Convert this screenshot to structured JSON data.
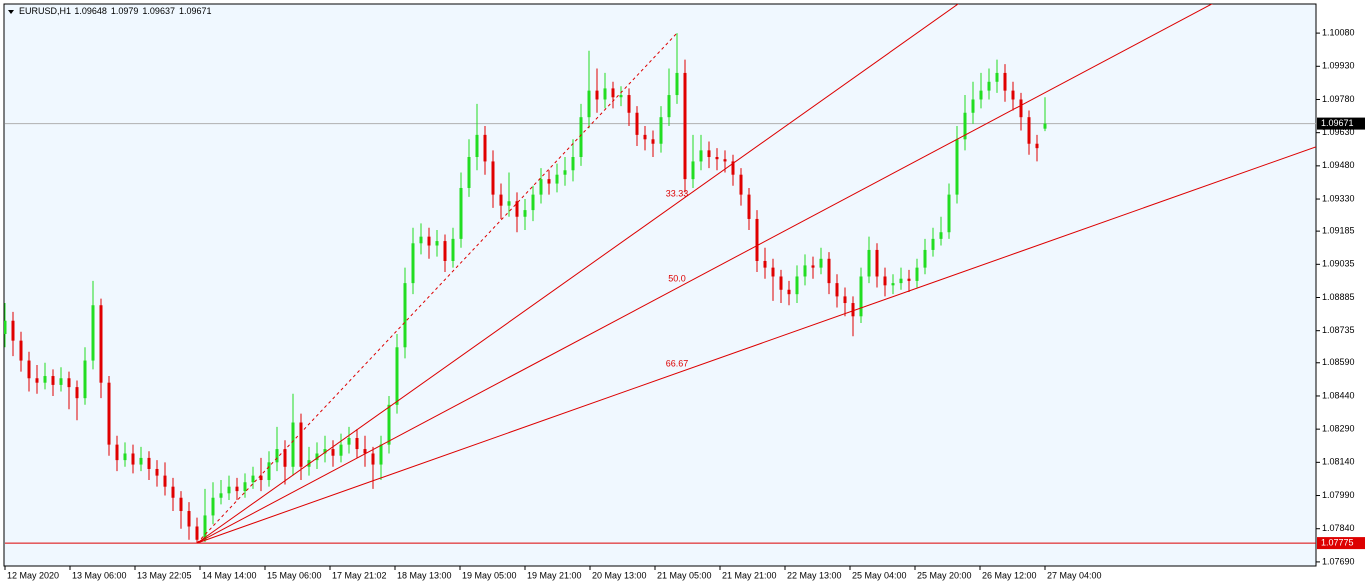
{
  "chart_data": {
    "type": "candlestick",
    "symbol": "EURUSD,H1",
    "bull_color": "#22dd22",
    "bear_color": "#e00000",
    "background": "#f0f8ff",
    "fan_color": "#dd0000",
    "ylim": [
      1.07676,
      1.10207
    ],
    "yticks": [
      {
        "value": 1.1008,
        "label": "1.10080"
      },
      {
        "value": 1.0993,
        "label": "1.09930"
      },
      {
        "value": 1.0978,
        "label": "1.09780"
      },
      {
        "value": 1.0963,
        "label": "1.09630"
      },
      {
        "value": 1.0948,
        "label": "1.09480"
      },
      {
        "value": 1.0933,
        "label": "1.09330"
      },
      1.09185,
      1.09035,
      1.08885,
      1.08735,
      {
        "value": 1.0859,
        "label": "1.08590"
      },
      {
        "value": 1.0844,
        "label": "1.08440"
      },
      {
        "value": 1.0829,
        "label": "1.08290"
      },
      {
        "value": 1.0814,
        "label": "1.08140"
      },
      {
        "value": 1.0799,
        "label": "1.07990"
      },
      {
        "value": 1.0784,
        "label": "1.07840"
      },
      {
        "value": 1.0769,
        "label": "1.07690"
      }
    ],
    "xtick_labels": [
      "12 May 2020",
      "13 May 06:00",
      "13 May 22:05",
      "14 May 14:00",
      "15 May 06:00",
      "17 May 21:02",
      "18 May 13:00",
      "19 May 05:00",
      "19 May 21:00",
      "20 May 13:00",
      "21 May 05:00",
      "21 May 21:00",
      "22 May 13:00",
      "25 May 04:00",
      "25 May 20:00",
      "26 May 12:00",
      "27 May 04:00"
    ],
    "hlines": [
      {
        "value": 1.07775,
        "color": "#dd0000"
      }
    ],
    "fan": {
      "start": 24,
      "end": 84,
      "levels": [
        33.33,
        {
          "value": 50,
          "label": "50.0"
        },
        66.67
      ]
    },
    "candles": [
      [
        1.0872,
        1.0886,
        1.0866,
        1.0878
      ],
      [
        1.0878,
        1.0882,
        1.0862,
        1.0869
      ],
      [
        1.0869,
        1.0873,
        1.0855,
        1.086
      ],
      [
        1.086,
        1.0864,
        1.0846,
        1.0852
      ],
      [
        1.0852,
        1.0858,
        1.0845,
        1.085
      ],
      [
        1.085,
        1.0859,
        1.0847,
        1.0853
      ],
      [
        1.0853,
        1.0856,
        1.0844,
        1.0849
      ],
      [
        1.0849,
        1.0857,
        1.0846,
        1.0852
      ],
      [
        1.0852,
        1.0855,
        1.0838,
        1.0848
      ],
      [
        1.0848,
        1.0851,
        1.0833,
        1.0843
      ],
      [
        1.0843,
        1.0866,
        1.084,
        1.086
      ],
      [
        1.086,
        1.0896,
        1.0856,
        1.0885
      ],
      [
        1.0885,
        1.0888,
        1.0843,
        1.085
      ],
      [
        1.085,
        1.0853,
        1.0817,
        1.0822
      ],
      [
        1.0822,
        1.0826,
        1.081,
        1.0815
      ],
      [
        1.0815,
        1.0823,
        1.0812,
        1.0818
      ],
      [
        1.0818,
        1.0822,
        1.0809,
        1.0813
      ],
      [
        1.0813,
        1.0821,
        1.081,
        1.0816
      ],
      [
        1.0816,
        1.0819,
        1.0806,
        1.0811
      ],
      [
        1.0811,
        1.0815,
        1.0803,
        1.0808
      ],
      [
        1.0808,
        1.0814,
        1.0799,
        1.0803
      ],
      [
        1.0803,
        1.0807,
        1.0792,
        1.0798
      ],
      [
        1.0798,
        1.0801,
        1.0784,
        1.0792
      ],
      [
        1.0792,
        1.0796,
        1.0779,
        1.0785
      ],
      [
        1.0785,
        1.0789,
        1.07775,
        1.0779
      ],
      [
        1.0779,
        1.0802,
        1.0778,
        1.079
      ],
      [
        1.079,
        1.0805,
        1.0786,
        1.0798
      ],
      [
        1.0798,
        1.0806,
        1.0795,
        1.08
      ],
      [
        1.08,
        1.0808,
        1.0797,
        1.0803
      ],
      [
        1.0803,
        1.0807,
        1.0797,
        1.0801
      ],
      [
        1.0801,
        1.0809,
        1.0798,
        1.0805
      ],
      [
        1.0805,
        1.0812,
        1.0802,
        1.0808
      ],
      [
        1.0808,
        1.0816,
        1.0801,
        1.0806
      ],
      [
        1.0806,
        1.0819,
        1.0803,
        1.0814
      ],
      [
        1.0814,
        1.083,
        1.081,
        1.082
      ],
      [
        1.082,
        1.0824,
        1.0804,
        1.0812
      ],
      [
        1.0812,
        1.0845,
        1.0808,
        1.0832
      ],
      [
        1.0832,
        1.0836,
        1.0806,
        1.0812
      ],
      [
        1.0812,
        1.0821,
        1.0808,
        1.0815
      ],
      [
        1.0815,
        1.0823,
        1.0811,
        1.0818
      ],
      [
        1.0818,
        1.0826,
        1.0814,
        1.082
      ],
      [
        1.082,
        1.0824,
        1.0812,
        1.0817
      ],
      [
        1.0817,
        1.0827,
        1.0814,
        1.0822
      ],
      [
        1.0822,
        1.083,
        1.0818,
        1.0825
      ],
      [
        1.0825,
        1.0829,
        1.0816,
        1.082
      ],
      [
        1.082,
        1.0826,
        1.0812,
        1.0818
      ],
      [
        1.0818,
        1.0821,
        1.0802,
        1.0813
      ],
      [
        1.0813,
        1.0826,
        1.0806,
        1.0822
      ],
      [
        1.0822,
        1.0844,
        1.0818,
        1.084
      ],
      [
        1.084,
        1.0872,
        1.0836,
        1.0866
      ],
      [
        1.0866,
        1.0902,
        1.0861,
        1.0895
      ],
      [
        1.0895,
        1.092,
        1.089,
        1.0913
      ],
      [
        1.0913,
        1.0922,
        1.0908,
        1.0916
      ],
      [
        1.0916,
        1.092,
        1.0906,
        1.0912
      ],
      [
        1.0912,
        1.0919,
        1.0907,
        1.0914
      ],
      [
        1.0914,
        1.0917,
        1.09,
        1.0905
      ],
      [
        1.0905,
        1.092,
        1.0902,
        1.0915
      ],
      [
        1.0915,
        1.0945,
        1.0911,
        1.0938
      ],
      [
        1.0938,
        1.096,
        1.0934,
        1.0952
      ],
      [
        1.0952,
        1.0976,
        1.0946,
        1.0962
      ],
      [
        1.0962,
        1.0966,
        1.0944,
        1.095
      ],
      [
        1.095,
        1.0955,
        1.0929,
        1.0935
      ],
      [
        1.0935,
        1.094,
        1.0924,
        1.093
      ],
      [
        1.093,
        1.0945,
        1.0925,
        1.0932
      ],
      [
        1.0932,
        1.0936,
        1.0918,
        1.0925
      ],
      [
        1.0925,
        1.0933,
        1.0919,
        1.0928
      ],
      [
        1.0928,
        1.0939,
        1.0923,
        1.0935
      ],
      [
        1.0935,
        1.0947,
        1.0931,
        1.0942
      ],
      [
        1.0942,
        1.0946,
        1.0935,
        1.094
      ],
      [
        1.094,
        1.0949,
        1.0936,
        1.0944
      ],
      [
        1.0944,
        1.0952,
        1.0939,
        1.0946
      ],
      [
        1.0946,
        1.096,
        1.0941,
        1.0952
      ],
      [
        1.0952,
        1.0976,
        1.0948,
        1.097
      ],
      [
        1.097,
        1.1,
        1.0965,
        1.0982
      ],
      [
        1.0982,
        1.0992,
        1.0972,
        1.0978
      ],
      [
        1.0978,
        1.099,
        1.0974,
        1.0983
      ],
      [
        1.0983,
        1.0986,
        1.0974,
        1.0979
      ],
      [
        1.0979,
        1.0984,
        1.0975,
        1.098
      ],
      [
        1.098,
        1.0983,
        1.0966,
        1.0972
      ],
      [
        1.0972,
        1.0975,
        1.0957,
        1.0962
      ],
      [
        1.0962,
        1.0966,
        1.0955,
        1.096
      ],
      [
        1.096,
        1.0964,
        1.0952,
        1.0958
      ],
      [
        1.0958,
        1.0975,
        1.0954,
        1.097
      ],
      [
        1.097,
        1.0992,
        1.0966,
        1.098
      ],
      [
        1.098,
        1.1008,
        1.0976,
        1.099
      ],
      [
        1.099,
        1.0996,
        1.0936,
        1.0942
      ],
      [
        1.0942,
        1.0962,
        1.0938,
        1.095
      ],
      [
        1.095,
        1.0962,
        1.0946,
        1.0955
      ],
      [
        1.0955,
        1.0959,
        1.0947,
        1.0952
      ],
      [
        1.0952,
        1.0956,
        1.0946,
        1.0951
      ],
      [
        1.0951,
        1.0955,
        1.0945,
        1.095
      ],
      [
        1.095,
        1.0953,
        1.0939,
        1.0944
      ],
      [
        1.0944,
        1.0947,
        1.093,
        1.0935
      ],
      [
        1.0935,
        1.0938,
        1.0919,
        1.0924
      ],
      [
        1.0924,
        1.0928,
        1.09,
        1.0905
      ],
      [
        1.0905,
        1.0911,
        1.0897,
        1.0902
      ],
      [
        1.0902,
        1.0906,
        1.0887,
        1.0898
      ],
      [
        1.0898,
        1.0901,
        1.0886,
        1.0892
      ],
      [
        1.0892,
        1.0896,
        1.0885,
        1.089
      ],
      [
        1.089,
        1.0903,
        1.0886,
        1.0898
      ],
      [
        1.0898,
        1.0908,
        1.0894,
        1.0903
      ],
      [
        1.0903,
        1.0907,
        1.0897,
        1.0902
      ],
      [
        1.0902,
        1.0911,
        1.0899,
        1.0906
      ],
      [
        1.0906,
        1.0909,
        1.089,
        1.0895
      ],
      [
        1.0895,
        1.0899,
        1.0884,
        1.0889
      ],
      [
        1.0889,
        1.0893,
        1.088,
        1.0886
      ],
      [
        1.0886,
        1.0889,
        1.0871,
        1.088
      ],
      [
        1.088,
        1.0902,
        1.0877,
        1.0898
      ],
      [
        1.0898,
        1.0916,
        1.0895,
        1.091
      ],
      [
        1.091,
        1.0913,
        1.0893,
        1.0898
      ],
      [
        1.0898,
        1.0902,
        1.0889,
        1.0894
      ],
      [
        1.0894,
        1.0899,
        1.089,
        1.0895
      ],
      [
        1.0895,
        1.0902,
        1.0892,
        1.0897
      ],
      [
        1.0897,
        1.0901,
        1.0891,
        1.0896
      ],
      [
        1.0896,
        1.0906,
        1.0893,
        1.0902
      ],
      [
        1.0902,
        1.0915,
        1.0899,
        1.091
      ],
      [
        1.091,
        1.092,
        1.0907,
        1.0915
      ],
      [
        1.0915,
        1.0925,
        1.0912,
        1.0918
      ],
      [
        1.0918,
        1.094,
        1.0915,
        1.0935
      ],
      [
        1.0935,
        1.0966,
        1.0931,
        1.096
      ],
      [
        1.096,
        1.098,
        1.0955,
        1.0972
      ],
      [
        1.0972,
        1.0986,
        1.0967,
        1.0978
      ],
      [
        1.0978,
        1.099,
        1.0974,
        1.0982
      ],
      [
        1.0982,
        1.0992,
        1.0978,
        1.0986
      ],
      [
        1.0986,
        1.0996,
        1.0981,
        1.099
      ],
      [
        1.099,
        1.0994,
        1.0977,
        1.0982
      ],
      [
        1.0982,
        1.0986,
        1.0973,
        1.0978
      ],
      [
        1.0978,
        1.0981,
        1.0964,
        1.097
      ],
      [
        1.097,
        1.0973,
        1.0953,
        1.0958
      ],
      [
        1.0958,
        1.0962,
        1.095,
        1.0956
      ],
      [
        1.09648,
        1.0979,
        1.09637,
        1.09671
      ]
    ]
  }
}
